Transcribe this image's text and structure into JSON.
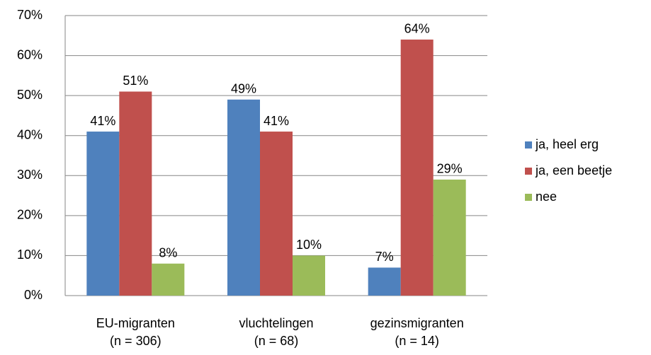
{
  "chart_data": {
    "type": "bar",
    "categories": [
      "EU-migranten\n(n = 306)",
      "vluchtelingen\n(n = 68)",
      "gezinsmigranten\n(n = 14)"
    ],
    "series": [
      {
        "name": "ja, heel erg",
        "color": "#4f81bd",
        "values": [
          41,
          49,
          7
        ],
        "value_labels": [
          "41%",
          "49%",
          "7%"
        ]
      },
      {
        "name": "ja, een beetje",
        "color": "#c0504d",
        "values": [
          51,
          41,
          64
        ],
        "value_labels": [
          "51%",
          "41%",
          "64%"
        ]
      },
      {
        "name": "nee",
        "color": "#9bbb59",
        "values": [
          8,
          10,
          29
        ],
        "value_labels": [
          "8%",
          "10%",
          "29%"
        ]
      }
    ],
    "ylim": [
      0,
      70
    ],
    "yticks": [
      {
        "value": 0,
        "label": "0%"
      },
      {
        "value": 10,
        "label": "10%"
      },
      {
        "value": 20,
        "label": "20%"
      },
      {
        "value": 30,
        "label": "30%"
      },
      {
        "value": 40,
        "label": "40%"
      },
      {
        "value": 50,
        "label": "50%"
      },
      {
        "value": 60,
        "label": "60%"
      },
      {
        "value": 70,
        "label": "70%"
      }
    ],
    "grid": true,
    "legend": "right"
  }
}
